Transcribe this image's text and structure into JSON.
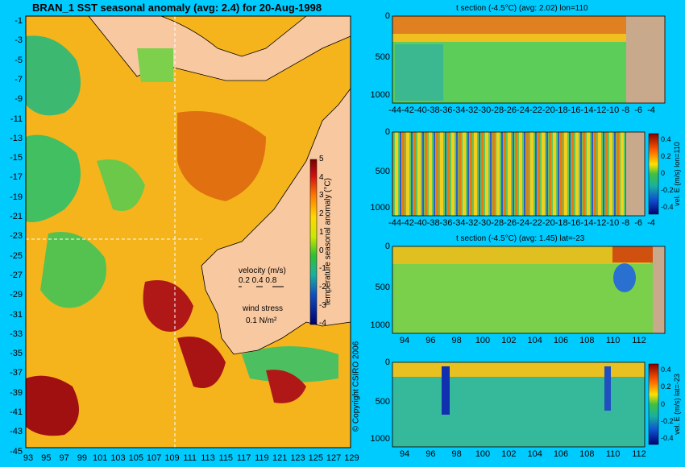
{
  "main_title": "BRAN_1  SST seasonal anomaly  (avg: 2.4)  for 20-Aug-1998",
  "map": {
    "lat_ticks": [
      "-1",
      "-3",
      "-5",
      "-7",
      "-9",
      "-11",
      "-13",
      "-15",
      "-17",
      "-19",
      "-21",
      "-23",
      "-25",
      "-27",
      "-29",
      "-31",
      "-33",
      "-35",
      "-37",
      "-39",
      "-41",
      "-43",
      "-45"
    ],
    "lon_ticks": [
      "93",
      "95",
      "97",
      "99",
      "101",
      "103",
      "105",
      "107",
      "109",
      "111",
      "113",
      "115",
      "117",
      "119",
      "121",
      "123",
      "125",
      "127",
      "129"
    ],
    "colorbar": {
      "label": "temperature seasonal anomaly (°C)",
      "ticks": [
        "5",
        "4",
        "3",
        "2",
        "1",
        "0",
        "-1",
        "-2",
        "-3",
        "-4"
      ]
    },
    "legend": {
      "velocity_label": "velocity (m/s)",
      "velocity_values": "0.2 0.4 0.8",
      "wind_label": "wind stress",
      "wind_value": "0.1 N/m²"
    },
    "copyright": "© Copyright CSIRO 2006"
  },
  "panels": [
    {
      "title": "t section (-4.5°C) (avg: 2.02) lon=110",
      "y_ticks": [
        "0",
        "500",
        "1000"
      ],
      "x_ticks": [
        "-44",
        "-42",
        "-40",
        "-38",
        "-36",
        "-34",
        "-32",
        "-30",
        "-28",
        "-26",
        "-24",
        "-22",
        "-20",
        "-18",
        "-16",
        "-14",
        "-12",
        "-10",
        "-8",
        "-6",
        "-4"
      ]
    },
    {
      "title": "",
      "y_ticks": [
        "0",
        "500",
        "1000"
      ],
      "x_ticks": [
        "-44",
        "-42",
        "-40",
        "-38",
        "-36",
        "-34",
        "-32",
        "-30",
        "-28",
        "-26",
        "-24",
        "-22",
        "-20",
        "-18",
        "-16",
        "-14",
        "-12",
        "-10",
        "-8",
        "-6",
        "-4"
      ],
      "colorbar_ticks": [
        "0.4",
        "0.2",
        "0",
        "-0.2",
        "-0.4"
      ],
      "colorbar_label": "vel. E (m/s) lon=110"
    },
    {
      "title": "t section (-4.5°C) (avg: 1.45) lat=-23",
      "y_ticks": [
        "0",
        "500",
        "1000"
      ],
      "x_ticks": [
        "94",
        "96",
        "98",
        "100",
        "102",
        "104",
        "106",
        "108",
        "110",
        "112"
      ]
    },
    {
      "title": "",
      "y_ticks": [
        "0",
        "500",
        "1000"
      ],
      "x_ticks": [
        "94",
        "96",
        "98",
        "100",
        "102",
        "104",
        "106",
        "108",
        "110",
        "112"
      ],
      "colorbar_ticks": [
        "0.4",
        "0.2",
        "0",
        "-0.2",
        "-0.4"
      ],
      "colorbar_label": "vel. E (m/s) lat=-23"
    }
  ]
}
